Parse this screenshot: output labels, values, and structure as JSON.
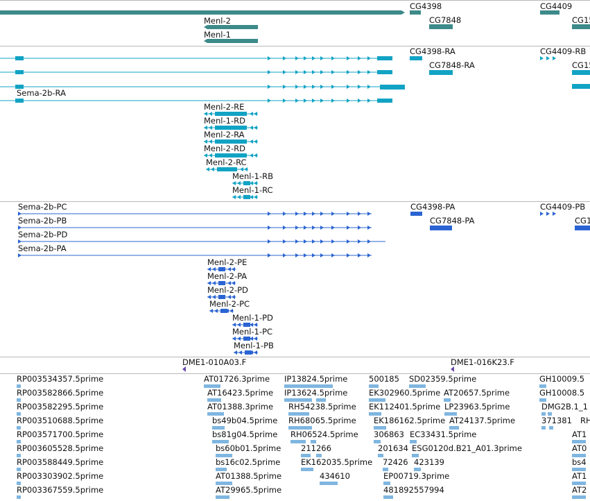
{
  "colors": {
    "gene": "#3d8a8a",
    "transcript": "#12a3c4",
    "protein": "#2b64d2",
    "clone": "#6a4aaa",
    "est": "#7fb6e0",
    "separator": "#b8b8b8"
  },
  "tracks": {
    "genes": {
      "labels": [
        "CG4398",
        "CG4409",
        "CG7848",
        "CG15",
        "Menl-2",
        "Menl-1"
      ]
    },
    "transcripts": {
      "labels": [
        "CG4398-RA",
        "CG4409-RB",
        "CG7848-RA",
        "CG15",
        "Sema-2b-RA",
        "Menl-2-RE",
        "Menl-1-RD",
        "Menl-2-RA",
        "Menl-2-RD",
        "Menl-2-RC",
        "Menl-1-RB",
        "Menl-1-RC"
      ]
    },
    "proteins": {
      "labels": [
        "Sema-2b-PC",
        "CG4398-PA",
        "CG4409-PB",
        "Sema-2b-PB",
        "CG7848-PA",
        "CG1",
        "Sema-2b-PD",
        "Sema-2b-PA",
        "Menl-2-PE",
        "Menl-2-PA",
        "Menl-2-PD",
        "Menl-2-PC",
        "Menl-1-PD",
        "Menl-1-PC",
        "Menl-1-PB"
      ]
    },
    "clones": {
      "labels": [
        "DME1-010A03.F",
        "DME1-016K23.F"
      ]
    },
    "ests": {
      "labels": [
        "RP003534357.5prime",
        "AT01726.3prime",
        "IP13824.5prime",
        "500185",
        "SD02359.5prime",
        "GH10009.5",
        "RP003582866.5prime",
        "AT16423.5prime",
        "IP13624.5prime",
        "EK302960.5prime",
        "AT20657.5prime",
        "GH10008.5",
        "RP003582295.5prime",
        "AT01388.3prime",
        "RH54238.5prime",
        "EK112401.5prime",
        "LP23963.5prime",
        "DMG2B.1_1",
        "RP003510688.5prime",
        "bs49b04.5prime",
        "RH68065.5prime",
        "EK186162.5prime",
        "AT24137.5prime",
        "371381",
        "RH",
        "RP003571700.5prime",
        "bs81g04.5prime",
        "RH06524.5prime",
        "306863",
        "EC33431.5prime",
        "AT1",
        "RP003605528.5prime",
        "bs60b01.5prime",
        "211266",
        "201634",
        "ESG0120d.B21_A01.3prime",
        "AT0",
        "RP003588449.5prime",
        "bs16c02.5prime",
        "EK162035.5prime",
        "72426",
        "423139",
        "bs4",
        "RP003303902.5prime",
        "AT01388.5prime",
        "434610",
        "EP00719.3prime",
        "AT1",
        "RP003367559.5prime",
        "AT29965.5prime",
        "481892557994",
        "AT2"
      ]
    }
  }
}
